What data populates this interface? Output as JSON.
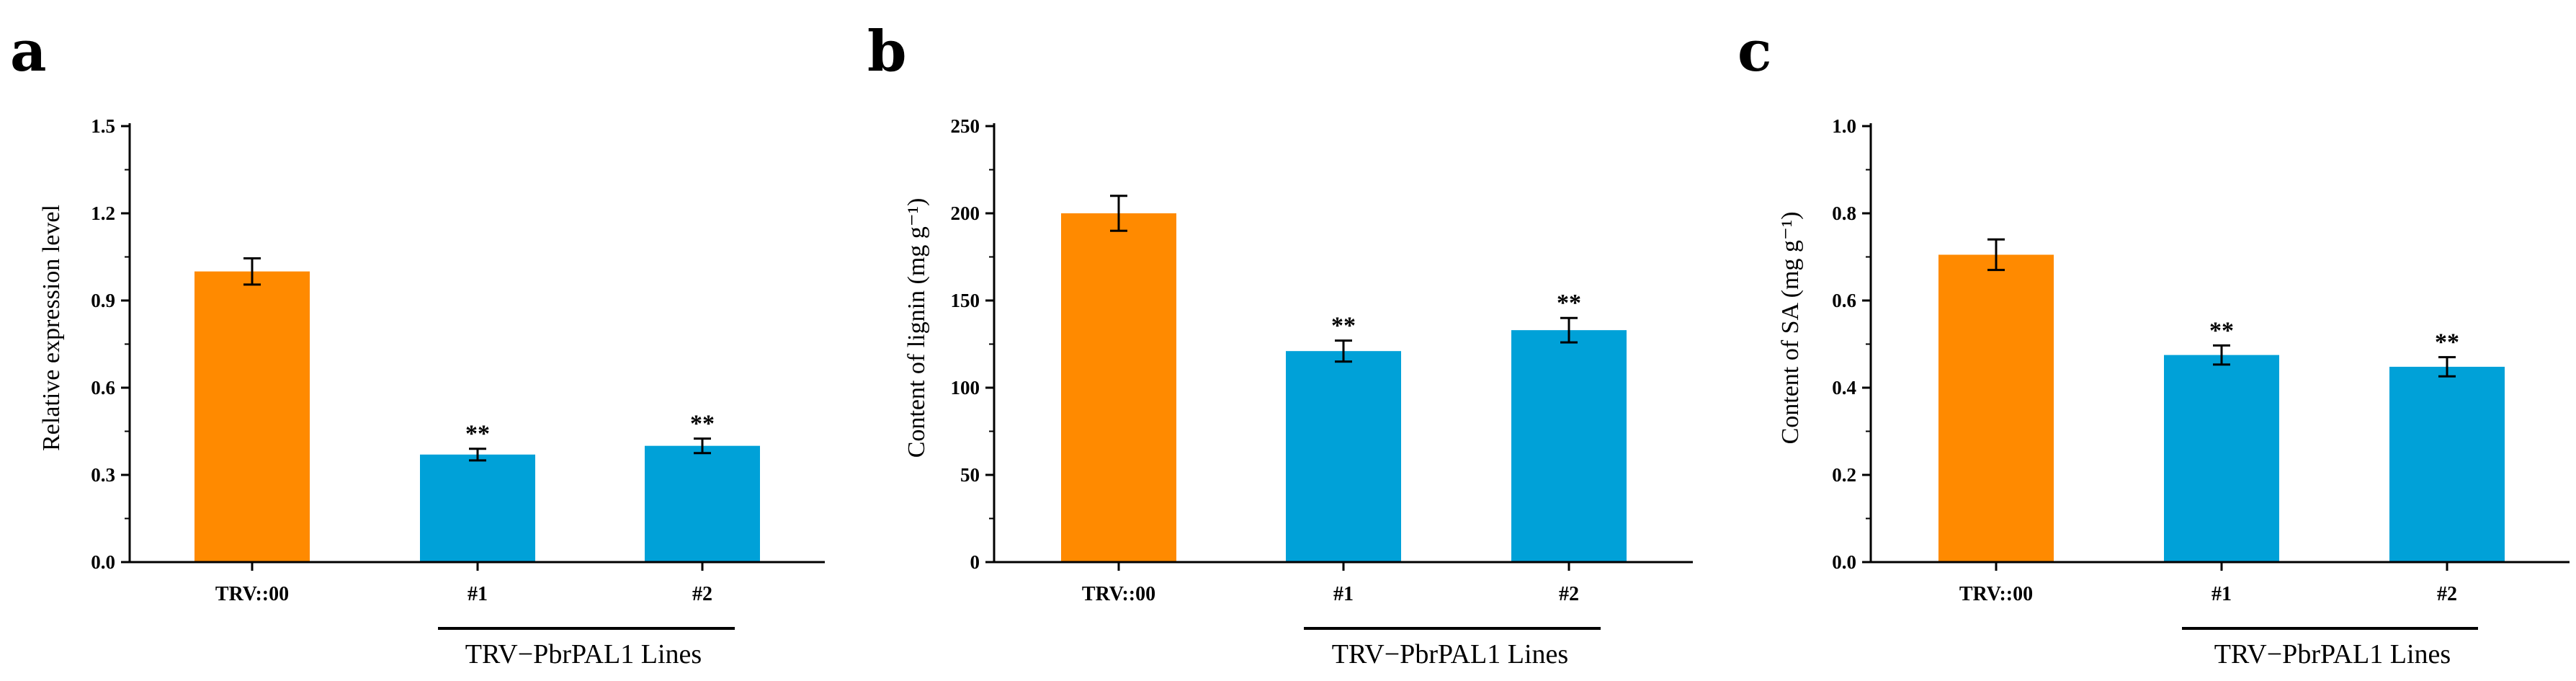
{
  "colors": {
    "control": "#ff8a00",
    "treatment": "#00a1d8",
    "axis": "#000000"
  },
  "chart_data": [
    {
      "type": "bar",
      "panel": "a",
      "title": "",
      "ylabel": "Relative expression level",
      "group_label": "TRV−PbrPAL1 Lines",
      "categories": [
        "TRV::00",
        "#1",
        "#2"
      ],
      "values": [
        1.0,
        0.37,
        0.4
      ],
      "errors": [
        0.045,
        0.02,
        0.025
      ],
      "significance": [
        "",
        "**",
        "**"
      ],
      "ylim": [
        0,
        1.5
      ],
      "yticks": [
        0.0,
        0.3,
        0.6,
        0.9,
        1.2,
        1.5
      ],
      "ytick_labels": [
        "0.0",
        "0.3",
        "0.6",
        "0.9",
        "1.2",
        "1.5"
      ]
    },
    {
      "type": "bar",
      "panel": "b",
      "title": "",
      "ylabel": "Content of lignin (mg g⁻¹)",
      "group_label": "TRV−PbrPAL1 Lines",
      "categories": [
        "TRV::00",
        "#1",
        "#2"
      ],
      "values": [
        200,
        121,
        133
      ],
      "errors": [
        10,
        6,
        7
      ],
      "significance": [
        "",
        "**",
        "**"
      ],
      "ylim": [
        0,
        250
      ],
      "yticks": [
        0,
        50,
        100,
        150,
        200,
        250
      ],
      "ytick_labels": [
        "0",
        "50",
        "100",
        "150",
        "200",
        "250"
      ]
    },
    {
      "type": "bar",
      "panel": "c",
      "title": "",
      "ylabel": "Content of SA (mg g⁻¹)",
      "group_label": "TRV−PbrPAL1 Lines",
      "categories": [
        "TRV::00",
        "#1",
        "#2"
      ],
      "values": [
        0.705,
        0.475,
        0.448
      ],
      "errors": [
        0.035,
        0.022,
        0.022
      ],
      "significance": [
        "",
        "**",
        "**"
      ],
      "ylim": [
        0,
        1.0
      ],
      "yticks": [
        0.0,
        0.2,
        0.4,
        0.6,
        0.8,
        1.0
      ],
      "ytick_labels": [
        "0.0",
        "0.2",
        "0.4",
        "0.6",
        "0.8",
        "1.0"
      ]
    }
  ]
}
